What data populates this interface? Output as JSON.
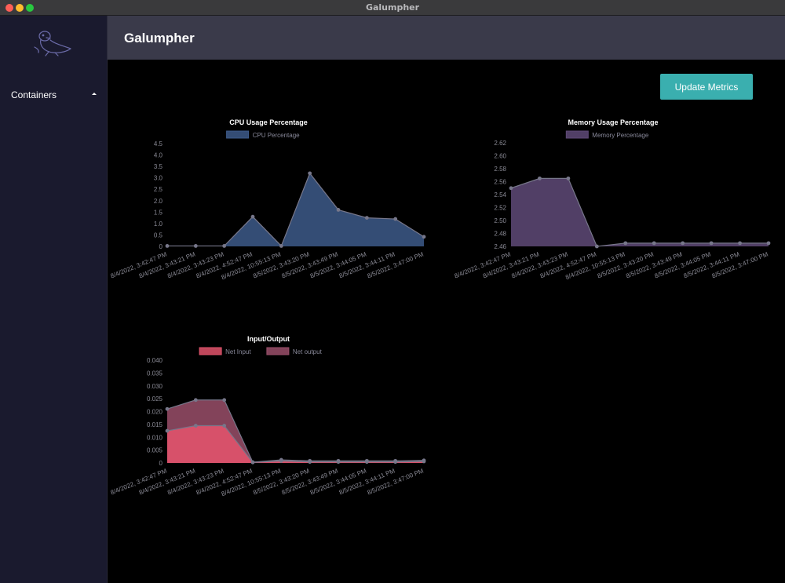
{
  "window": {
    "title": "Galumpher"
  },
  "sidebar": {
    "logo_icon": "seal-logo-icon",
    "items": [
      {
        "label": "Containers",
        "icon": "caret-up-icon"
      }
    ]
  },
  "header": {
    "title": "Galumpher"
  },
  "toolbar": {
    "update_label": "Update Metrics"
  },
  "colors": {
    "accent": "#3aafaf",
    "cpu_fill": "#3d5a8a",
    "memory_fill": "#5f4a78",
    "net_input_fill": "#e0536b",
    "net_output_fill": "#9a4f6a"
  },
  "chart_data": [
    {
      "type": "area",
      "title": "CPU Usage Percentage",
      "categories": [
        "8/4/2022, 3:42:47 PM",
        "8/4/2022, 3:43:21 PM",
        "8/4/2022, 3:43:23 PM",
        "8/4/2022, 4:52:47 PM",
        "8/4/2022, 10:55:13 PM",
        "8/5/2022, 3:43:20 PM",
        "8/5/2022, 3:43:49 PM",
        "8/5/2022, 3:44:05 PM",
        "8/5/2022, 3:44:11 PM",
        "8/5/2022, 3:47:00 PM"
      ],
      "x_tick_labels": [
        "8/4/2022, 3:42:47 PM",
        "8/4/2022, 3:43:21 PM",
        "8/4/2022, 3:43:23 PM",
        "8/4/2022, 4:52:47 PM",
        "8/4/2022, 10:55:13 PM",
        "8/5/2022, 3:43:20 PM",
        "8/5/2022, 3:43:49 PM",
        "8/5/2022, 3:44:05 PM",
        "8/5/2022, 3:44:11 PM",
        "8/5/2022, 3:47:00 PM"
      ],
      "series": [
        {
          "name": "CPU Percentage",
          "values": [
            0.02,
            0.02,
            0.02,
            1.3,
            0.02,
            3.2,
            1.6,
            1.25,
            1.2,
            0.42
          ]
        }
      ],
      "ylim": [
        0,
        4.5
      ],
      "y_ticks": [
        "0",
        "0.5",
        "1.0",
        "1.5",
        "2.0",
        "2.5",
        "3.0",
        "3.5",
        "4.0",
        "4.5"
      ],
      "legend_position": "top"
    },
    {
      "type": "area",
      "title": "Memory Usage Percentage",
      "categories": [
        "8/4/2022, 3:42:47 PM",
        "8/4/2022, 3:43:21 PM",
        "8/4/2022, 3:43:23 PM",
        "8/4/2022, 4:52:47 PM",
        "8/4/2022, 10:55:13 PM",
        "8/5/2022, 3:43:20 PM",
        "8/5/2022, 3:43:49 PM",
        "8/5/2022, 3:44:05 PM",
        "8/5/2022, 3:44:11 PM",
        "8/5/2022, 3:47:00 PM"
      ],
      "x_tick_labels": [
        "8/4/2022, 3:42:47 PM",
        "8/4/2022, 3:43:21 PM",
        "8/4/2022, 3:43:23 PM",
        "8/4/2022, 4:52:47 PM",
        "8/4/2022, 10:55:13 PM",
        "8/5/2022, 3:43:20 PM",
        "8/5/2022, 3:43:49 PM",
        "8/5/2022, 3:44:05 PM",
        "8/5/2022, 3:44:11 PM",
        "8/5/2022, 3:47:00 PM"
      ],
      "series": [
        {
          "name": "Memory Percentage",
          "values": [
            2.55,
            2.565,
            2.565,
            2.46,
            2.465,
            2.465,
            2.465,
            2.465,
            2.465,
            2.465
          ]
        }
      ],
      "ylim": [
        2.46,
        2.62
      ],
      "y_ticks": [
        "2.46",
        "2.48",
        "2.50",
        "2.52",
        "2.54",
        "2.56",
        "2.58",
        "2.60",
        "2.62"
      ],
      "legend_position": "top"
    },
    {
      "type": "area",
      "title": "Input/Output",
      "categories": [
        "8/4/2022, 3:42:47 PM",
        "8/4/2022, 3:43:21 PM",
        "8/4/2022, 3:43:23 PM",
        "8/4/2022, 4:52:47 PM",
        "8/4/2022, 10:55:13 PM",
        "8/5/2022, 3:43:20 PM",
        "8/5/2022, 3:43:49 PM",
        "8/5/2022, 3:44:05 PM",
        "8/5/2022, 3:44:11 PM",
        "8/5/2022, 3:47:00 PM"
      ],
      "x_tick_labels": [
        "8/4/2022, 3:42:47 PM",
        "8/4/2022, 3:43:21 PM",
        "8/4/2022, 3:43:23 PM",
        "8/4/2022, 4:52:47 PM",
        "8/4/2022, 10:55:13 PM",
        "8/5/2022, 3:43:20 PM",
        "8/5/2022, 3:43:49 PM",
        "8/5/2022, 3:44:05 PM",
        "8/5/2022, 3:44:11 PM",
        "8/5/2022, 3:47:00 PM"
      ],
      "series": [
        {
          "name": "Net Input",
          "values": [
            0.0125,
            0.0145,
            0.0145,
            0.0002,
            0.0008,
            0.0004,
            0.0004,
            0.0004,
            0.0004,
            0.0006
          ]
        },
        {
          "name": "Net output",
          "values": [
            0.021,
            0.0245,
            0.0245,
            0.0003,
            0.0012,
            0.0008,
            0.0008,
            0.0008,
            0.0008,
            0.001
          ]
        }
      ],
      "ylim": [
        0,
        0.04
      ],
      "y_ticks": [
        "0",
        "0.005",
        "0.010",
        "0.015",
        "0.020",
        "0.025",
        "0.030",
        "0.035",
        "0.040"
      ],
      "legend_position": "top"
    }
  ]
}
